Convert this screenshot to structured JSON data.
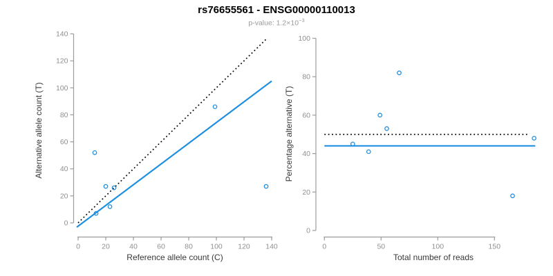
{
  "header": {
    "title": "rs76655561 - ENSG00000110013",
    "subtitle_base": "p-value: 1.2×10",
    "subtitle_exp": "−3"
  },
  "colors": {
    "point": "#1e8fe0",
    "fit_line": "#1e8fe0",
    "reference_line": "#000000",
    "axis": "#9b9b9b",
    "tick_label": "#8f8f8f",
    "axis_label": "#383838",
    "title": "#000000",
    "subtitle": "#9a9a9a"
  },
  "chart_data": [
    {
      "type": "scatter",
      "title": "rs76655561 - ENSG00000110013",
      "xlabel": "Reference allele count (C)",
      "ylabel": "Alternative allele count (T)",
      "xlim": [
        0,
        140
      ],
      "ylim": [
        0,
        140
      ],
      "xticks": [
        0,
        20,
        40,
        60,
        80,
        100,
        120,
        140
      ],
      "yticks": [
        0,
        20,
        40,
        60,
        80,
        100,
        120,
        140
      ],
      "grid": false,
      "points": [
        [
          12,
          52
        ],
        [
          20,
          27
        ],
        [
          26,
          26
        ],
        [
          23,
          12
        ],
        [
          13,
          7
        ],
        [
          99,
          86
        ],
        [
          136,
          27
        ]
      ],
      "lines": [
        {
          "name": "identity-line",
          "style": "dotted",
          "color": "#000000",
          "x": [
            0,
            137
          ],
          "y": [
            0,
            137
          ]
        },
        {
          "name": "fit-line",
          "style": "solid",
          "color": "#1e8fe0",
          "x": [
            -1,
            140
          ],
          "y": [
            -3.2,
            105
          ]
        }
      ]
    },
    {
      "type": "scatter",
      "title": "rs76655561 - ENSG00000110013",
      "xlabel": "Total number of reads",
      "ylabel": "Percentage alternative (T)",
      "xlim": [
        0,
        150
      ],
      "ylim": [
        0,
        100
      ],
      "xticks": [
        0,
        50,
        100,
        150
      ],
      "yticks": [
        0,
        20,
        40,
        60,
        80,
        100
      ],
      "grid": false,
      "points": [
        [
          66,
          82
        ],
        [
          49,
          60
        ],
        [
          55,
          53
        ],
        [
          25,
          45
        ],
        [
          39,
          41
        ],
        [
          185,
          48
        ],
        [
          166,
          18
        ]
      ],
      "lines": [
        {
          "name": "expected-50pct-line",
          "style": "dotted",
          "color": "#000000",
          "x": [
            0,
            179
          ],
          "y": [
            50,
            50
          ]
        },
        {
          "name": "observed-mean-line",
          "style": "solid",
          "color": "#1e8fe0",
          "x": [
            0,
            186
          ],
          "y": [
            44,
            44
          ]
        }
      ]
    }
  ]
}
